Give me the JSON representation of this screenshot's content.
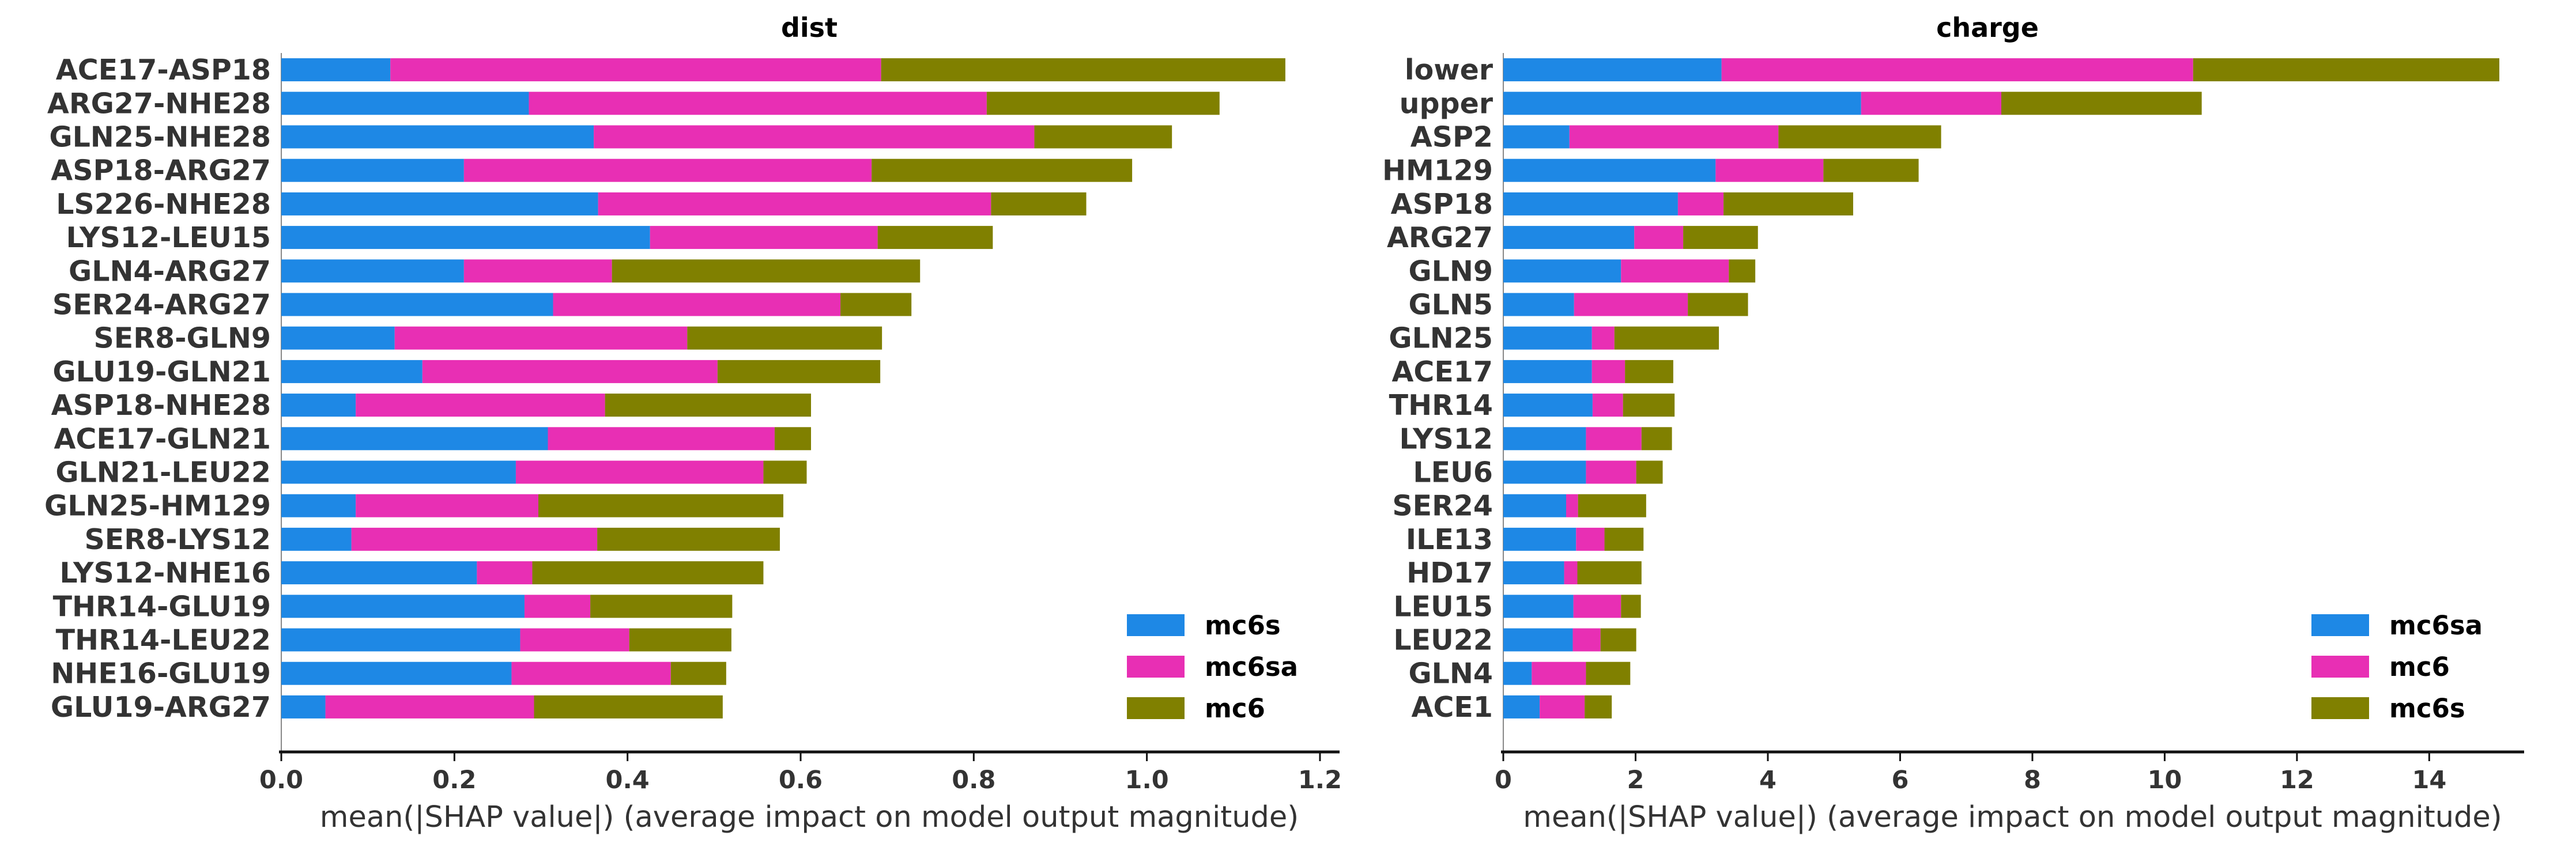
{
  "chart_data": [
    {
      "type": "bar",
      "orientation": "horizontal",
      "stacked": true,
      "title": "dist",
      "xlabel": "mean(|SHAP value|) (average impact on model output magnitude)",
      "xlim": [
        0,
        1.22
      ],
      "xticks": [
        "0.0",
        "0.2",
        "0.4",
        "0.6",
        "0.8",
        "1.0",
        "1.2"
      ],
      "legend_position": "lower-right",
      "categories": [
        "ACE17-ASP18",
        "ARG27-NHE28",
        "GLN25-NHE28",
        "ASP18-ARG27",
        "LS226-NHE28",
        "LYS12-LEU15",
        "GLN4-ARG27",
        "SER24-ARG27",
        "SER8-GLN9",
        "GLU19-GLN21",
        "ASP18-NHE28",
        "ACE17-GLN21",
        "GLN21-LEU22",
        "GLN25-HM129",
        "SER8-LYS12",
        "LYS12-NHE16",
        "THR14-GLU19",
        "THR14-LEU22",
        "NHE16-GLU19",
        "GLU19-ARG27"
      ],
      "series": [
        {
          "name": "mc6s",
          "color": "#1e88e5",
          "values": [
            0.126,
            0.286,
            0.361,
            0.211,
            0.366,
            0.426,
            0.211,
            0.314,
            0.131,
            0.163,
            0.086,
            0.308,
            0.271,
            0.086,
            0.081,
            0.226,
            0.281,
            0.276,
            0.266,
            0.051
          ]
        },
        {
          "name": "mc6sa",
          "color": "#e82fb4",
          "values": [
            0.567,
            0.529,
            0.509,
            0.471,
            0.454,
            0.263,
            0.171,
            0.332,
            0.338,
            0.341,
            0.288,
            0.262,
            0.286,
            0.211,
            0.284,
            0.064,
            0.076,
            0.126,
            0.184,
            0.241
          ]
        },
        {
          "name": "mc6",
          "color": "#808000",
          "values": [
            0.467,
            0.269,
            0.159,
            0.301,
            0.11,
            0.133,
            0.356,
            0.082,
            0.225,
            0.188,
            0.238,
            0.042,
            0.05,
            0.283,
            0.211,
            0.267,
            0.164,
            0.118,
            0.064,
            0.218
          ]
        }
      ]
    },
    {
      "type": "bar",
      "orientation": "horizontal",
      "stacked": true,
      "title": "charge",
      "xlabel": "mean(|SHAP value|) (average impact on model output magnitude)",
      "xlim": [
        0,
        15.4
      ],
      "xticks": [
        "0",
        "2",
        "4",
        "6",
        "8",
        "10",
        "12",
        "14"
      ],
      "legend_position": "lower-right",
      "categories": [
        "lower",
        "upper",
        "ASP2",
        "HM129",
        "ASP18",
        "ARG27",
        "GLN9",
        "GLN5",
        "GLN25",
        "ACE17",
        "THR14",
        "LYS12",
        "LEU6",
        "SER24",
        "ILE13",
        "HD17",
        "LEU15",
        "LEU22",
        "GLN4",
        "ACE1"
      ],
      "series": [
        {
          "name": "mc6sa",
          "color": "#1e88e5",
          "values": [
            3.3,
            5.41,
            1.0,
            3.21,
            2.64,
            1.98,
            1.78,
            1.07,
            1.34,
            1.34,
            1.35,
            1.25,
            1.25,
            0.95,
            1.1,
            0.92,
            1.06,
            1.05,
            0.43,
            0.55
          ]
        },
        {
          "name": "mc6",
          "color": "#e82fb4",
          "values": [
            7.13,
            2.12,
            3.16,
            1.63,
            0.69,
            0.74,
            1.63,
            1.72,
            0.34,
            0.5,
            0.46,
            0.84,
            0.76,
            0.18,
            0.43,
            0.2,
            0.72,
            0.42,
            0.82,
            0.68
          ]
        },
        {
          "name": "mc6s",
          "color": "#808000",
          "values": [
            4.63,
            3.03,
            2.46,
            1.44,
            1.96,
            1.13,
            0.4,
            0.91,
            1.58,
            0.73,
            0.78,
            0.46,
            0.4,
            1.03,
            0.59,
            0.97,
            0.3,
            0.54,
            0.67,
            0.41
          ]
        }
      ]
    }
  ]
}
